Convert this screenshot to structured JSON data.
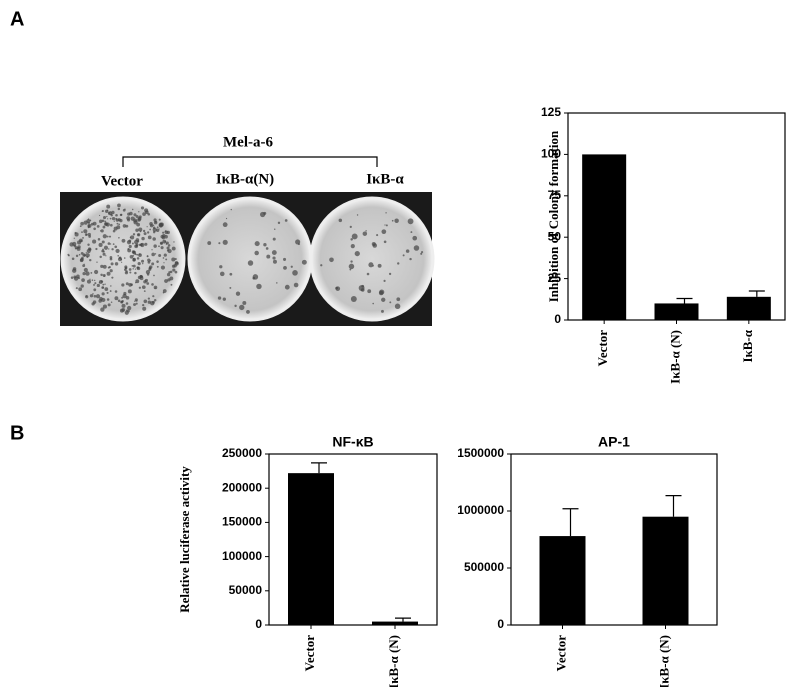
{
  "panels": [
    "A",
    "B"
  ],
  "photo": {
    "title": "Mel-a-6",
    "labels": [
      "Vector",
      "IκB-α(N)",
      "IκB-α"
    ]
  },
  "chart_data": [
    {
      "type": "bar",
      "y_label": "Inhibition of Colony formation",
      "categories": [
        "Vector",
        "IκB-α (N)",
        "IκB-α"
      ],
      "values": [
        100,
        10,
        14
      ],
      "errors": [
        null,
        3,
        3.5
      ],
      "color": "#000000",
      "ylim": [
        0,
        125
      ],
      "yticks": [
        0,
        25,
        50,
        75,
        100,
        125
      ]
    },
    {
      "type": "bar",
      "title": "NF-κB",
      "y_label": "Relative luciferase activity",
      "categories": [
        "Vector",
        "IκB-α (N)"
      ],
      "values": [
        222000,
        5000
      ],
      "errors": [
        15000,
        5000
      ],
      "color": "#000000",
      "ylim": [
        0,
        250000
      ],
      "yticks": [
        0,
        50000,
        100000,
        150000,
        200000,
        250000
      ]
    },
    {
      "type": "bar",
      "title": "AP-1",
      "categories": [
        "Vector",
        "IκB-α (N)"
      ],
      "values": [
        780000,
        950000
      ],
      "errors": [
        240000,
        185000
      ],
      "color": "#000000",
      "ylim": [
        0,
        1500000
      ],
      "yticks": [
        0,
        500000,
        1000000,
        1500000
      ]
    }
  ]
}
